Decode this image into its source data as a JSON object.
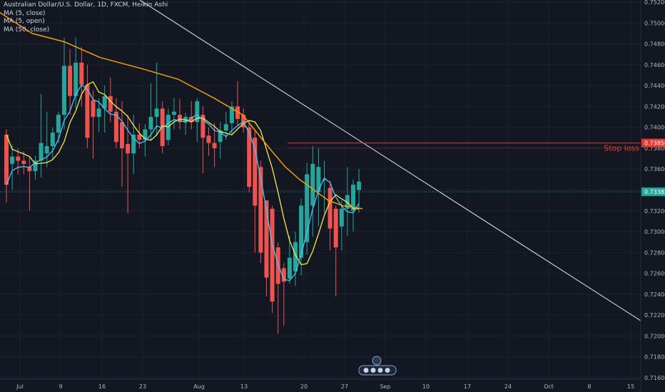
{
  "header": {
    "title": "Australian Dollar/U.S. Dollar, 1D, FXCM, Heikin Ashi",
    "indicators": [
      "MA (5, close)",
      "MA (5, open)",
      "MA (50, close)"
    ]
  },
  "colors": {
    "background": "#131722",
    "grid": "#1e222d",
    "up": "#26a69a",
    "down": "#ef5350",
    "ma_close": "#4fc3f7",
    "ma_open": "#f4e94c",
    "ma_50": "#f39c12",
    "trendline": "#d1d4dc",
    "stop_loss": "#e53935",
    "current": "#26a69a"
  },
  "chart_data": {
    "type": "candlestick",
    "y_ticks": [
      "0.75200",
      "0.75000",
      "0.74800",
      "0.74600",
      "0.74400",
      "0.74200",
      "0.74000",
      "0.73800",
      "0.73600",
      "0.73400",
      "0.73200",
      "0.73000",
      "0.72800",
      "0.72600",
      "0.72400",
      "0.72200",
      "0.72000",
      "0.71800",
      "0.71600"
    ],
    "ylim": [
      0.7157,
      0.7522
    ],
    "x_ticks": [
      "Jul",
      "9",
      "16",
      "23",
      "Aug",
      "13",
      "20",
      "27",
      "Sep",
      "10",
      "17",
      "24",
      "Oct",
      "8",
      "15"
    ],
    "candles": [
      {
        "o": 0.7393,
        "h": 0.7398,
        "l": 0.7328,
        "c": 0.7345
      },
      {
        "o": 0.7365,
        "h": 0.7383,
        "l": 0.734,
        "c": 0.7372
      },
      {
        "o": 0.7372,
        "h": 0.738,
        "l": 0.7355,
        "c": 0.7368
      },
      {
        "o": 0.7368,
        "h": 0.7377,
        "l": 0.7355,
        "c": 0.7365
      },
      {
        "o": 0.7362,
        "h": 0.7372,
        "l": 0.732,
        "c": 0.7358
      },
      {
        "o": 0.7358,
        "h": 0.7373,
        "l": 0.735,
        "c": 0.7368
      },
      {
        "o": 0.7368,
        "h": 0.7432,
        "l": 0.7352,
        "c": 0.7385
      },
      {
        "o": 0.7375,
        "h": 0.7415,
        "l": 0.7362,
        "c": 0.7382
      },
      {
        "o": 0.7382,
        "h": 0.74,
        "l": 0.737,
        "c": 0.7395
      },
      {
        "o": 0.7395,
        "h": 0.7415,
        "l": 0.7385,
        "c": 0.7412
      },
      {
        "o": 0.7412,
        "h": 0.7486,
        "l": 0.7398,
        "c": 0.7459
      },
      {
        "o": 0.7459,
        "h": 0.7475,
        "l": 0.7412,
        "c": 0.743
      },
      {
        "o": 0.743,
        "h": 0.7486,
        "l": 0.7418,
        "c": 0.7462
      },
      {
        "o": 0.7462,
        "h": 0.7477,
        "l": 0.742,
        "c": 0.7441
      },
      {
        "o": 0.7441,
        "h": 0.746,
        "l": 0.738,
        "c": 0.739
      },
      {
        "o": 0.7426,
        "h": 0.7435,
        "l": 0.737,
        "c": 0.741
      },
      {
        "o": 0.741,
        "h": 0.7428,
        "l": 0.7395,
        "c": 0.7418
      },
      {
        "o": 0.7418,
        "h": 0.744,
        "l": 0.7395,
        "c": 0.743
      },
      {
        "o": 0.743,
        "h": 0.7448,
        "l": 0.7405,
        "c": 0.7415
      },
      {
        "o": 0.7415,
        "h": 0.7428,
        "l": 0.738,
        "c": 0.7386
      },
      {
        "o": 0.7405,
        "h": 0.7425,
        "l": 0.7343,
        "c": 0.738
      },
      {
        "o": 0.7384,
        "h": 0.7412,
        "l": 0.7318,
        "c": 0.7375
      },
      {
        "o": 0.7375,
        "h": 0.7412,
        "l": 0.7355,
        "c": 0.7393
      },
      {
        "o": 0.7393,
        "h": 0.7404,
        "l": 0.738,
        "c": 0.7388
      },
      {
        "o": 0.7388,
        "h": 0.7403,
        "l": 0.7372,
        "c": 0.7398
      },
      {
        "o": 0.7398,
        "h": 0.7442,
        "l": 0.7388,
        "c": 0.741
      },
      {
        "o": 0.741,
        "h": 0.7462,
        "l": 0.7392,
        "c": 0.7418
      },
      {
        "o": 0.7418,
        "h": 0.7425,
        "l": 0.7375,
        "c": 0.7382
      },
      {
        "o": 0.7388,
        "h": 0.7418,
        "l": 0.7383,
        "c": 0.7412
      },
      {
        "o": 0.7412,
        "h": 0.7428,
        "l": 0.7398,
        "c": 0.7415
      },
      {
        "o": 0.7412,
        "h": 0.7427,
        "l": 0.7398,
        "c": 0.7405
      },
      {
        "o": 0.7405,
        "h": 0.7414,
        "l": 0.7393,
        "c": 0.741
      },
      {
        "o": 0.741,
        "h": 0.7425,
        "l": 0.7398,
        "c": 0.7405
      },
      {
        "o": 0.7405,
        "h": 0.7428,
        "l": 0.7386,
        "c": 0.7425
      },
      {
        "o": 0.7412,
        "h": 0.742,
        "l": 0.7356,
        "c": 0.739
      },
      {
        "o": 0.7392,
        "h": 0.74,
        "l": 0.7373,
        "c": 0.7385
      },
      {
        "o": 0.7385,
        "h": 0.7404,
        "l": 0.7362,
        "c": 0.738
      },
      {
        "o": 0.7386,
        "h": 0.7405,
        "l": 0.737,
        "c": 0.7397
      },
      {
        "o": 0.7397,
        "h": 0.7415,
        "l": 0.7388,
        "c": 0.7403
      },
      {
        "o": 0.7404,
        "h": 0.7425,
        "l": 0.7392,
        "c": 0.742
      },
      {
        "o": 0.742,
        "h": 0.7444,
        "l": 0.7402,
        "c": 0.7408
      },
      {
        "o": 0.7412,
        "h": 0.7418,
        "l": 0.7395,
        "c": 0.74
      },
      {
        "o": 0.74,
        "h": 0.7406,
        "l": 0.7338,
        "c": 0.7343
      },
      {
        "o": 0.739,
        "h": 0.7398,
        "l": 0.728,
        "c": 0.7325
      },
      {
        "o": 0.7362,
        "h": 0.7368,
        "l": 0.727,
        "c": 0.728
      },
      {
        "o": 0.733,
        "h": 0.733,
        "l": 0.7238,
        "c": 0.7256
      },
      {
        "o": 0.7322,
        "h": 0.7325,
        "l": 0.7222,
        "c": 0.7233
      },
      {
        "o": 0.7285,
        "h": 0.729,
        "l": 0.7202,
        "c": 0.725
      },
      {
        "o": 0.7265,
        "h": 0.727,
        "l": 0.721,
        "c": 0.7252
      },
      {
        "o": 0.7255,
        "h": 0.7296,
        "l": 0.725,
        "c": 0.7275
      },
      {
        "o": 0.7262,
        "h": 0.73,
        "l": 0.7248,
        "c": 0.729
      },
      {
        "o": 0.7275,
        "h": 0.7332,
        "l": 0.7258,
        "c": 0.7325
      },
      {
        "o": 0.729,
        "h": 0.7366,
        "l": 0.7278,
        "c": 0.7355
      },
      {
        "o": 0.7325,
        "h": 0.7382,
        "l": 0.7295,
        "c": 0.7365
      },
      {
        "o": 0.7338,
        "h": 0.738,
        "l": 0.7305,
        "c": 0.7362
      },
      {
        "o": 0.735,
        "h": 0.7368,
        "l": 0.7318,
        "c": 0.735
      },
      {
        "o": 0.7342,
        "h": 0.7349,
        "l": 0.7282,
        "c": 0.7303
      },
      {
        "o": 0.7322,
        "h": 0.7325,
        "l": 0.7238,
        "c": 0.7285
      },
      {
        "o": 0.7305,
        "h": 0.733,
        "l": 0.7282,
        "c": 0.7322
      },
      {
        "o": 0.7322,
        "h": 0.7362,
        "l": 0.7296,
        "c": 0.7335
      },
      {
        "o": 0.732,
        "h": 0.735,
        "l": 0.73,
        "c": 0.7345
      },
      {
        "o": 0.734,
        "h": 0.736,
        "l": 0.7318,
        "c": 0.7348
      }
    ],
    "ma_50_close": [
      {
        "i": 0,
        "v": 0.751
      },
      {
        "i": 5,
        "v": 0.75
      },
      {
        "i": 10,
        "v": 0.749
      },
      {
        "i": 15,
        "v": 0.7486
      },
      {
        "i": 20,
        "v": 0.7478
      },
      {
        "i": 25,
        "v": 0.7472
      },
      {
        "i": 30,
        "v": 0.7468
      },
      {
        "i": 35,
        "v": 0.746
      },
      {
        "i": 40,
        "v": 0.7445
      },
      {
        "i": 45,
        "v": 0.7436
      },
      {
        "i": 50,
        "v": 0.7424
      },
      {
        "i": 55,
        "v": 0.7405
      },
      {
        "i": 58,
        "v": 0.7393
      },
      {
        "i": 61,
        "v": 0.7385
      },
      {
        "i": 64,
        "v": 0.7374
      },
      {
        "i": 68,
        "v": 0.737
      },
      {
        "i": 72,
        "v": 0.7366
      },
      {
        "i": 76,
        "v": 0.736
      },
      {
        "i": 80,
        "v": 0.7348
      },
      {
        "i": 84,
        "v": 0.7338
      },
      {
        "i": 88,
        "v": 0.7325
      },
      {
        "i": 92,
        "v": 0.7312
      },
      {
        "i": 96,
        "v": 0.7302
      },
      {
        "i": 100,
        "v": 0.729
      }
    ],
    "trendline": {
      "start": {
        "i": -0.5,
        "v": 0.753
      },
      "end": {
        "i": 100,
        "v": 0.721
      }
    },
    "stop_loss": {
      "label": "Stop loss",
      "price": 0.7385,
      "price_label": "0.73850"
    },
    "current_price": {
      "price": 0.73382,
      "price_label": "0.73382"
    }
  }
}
